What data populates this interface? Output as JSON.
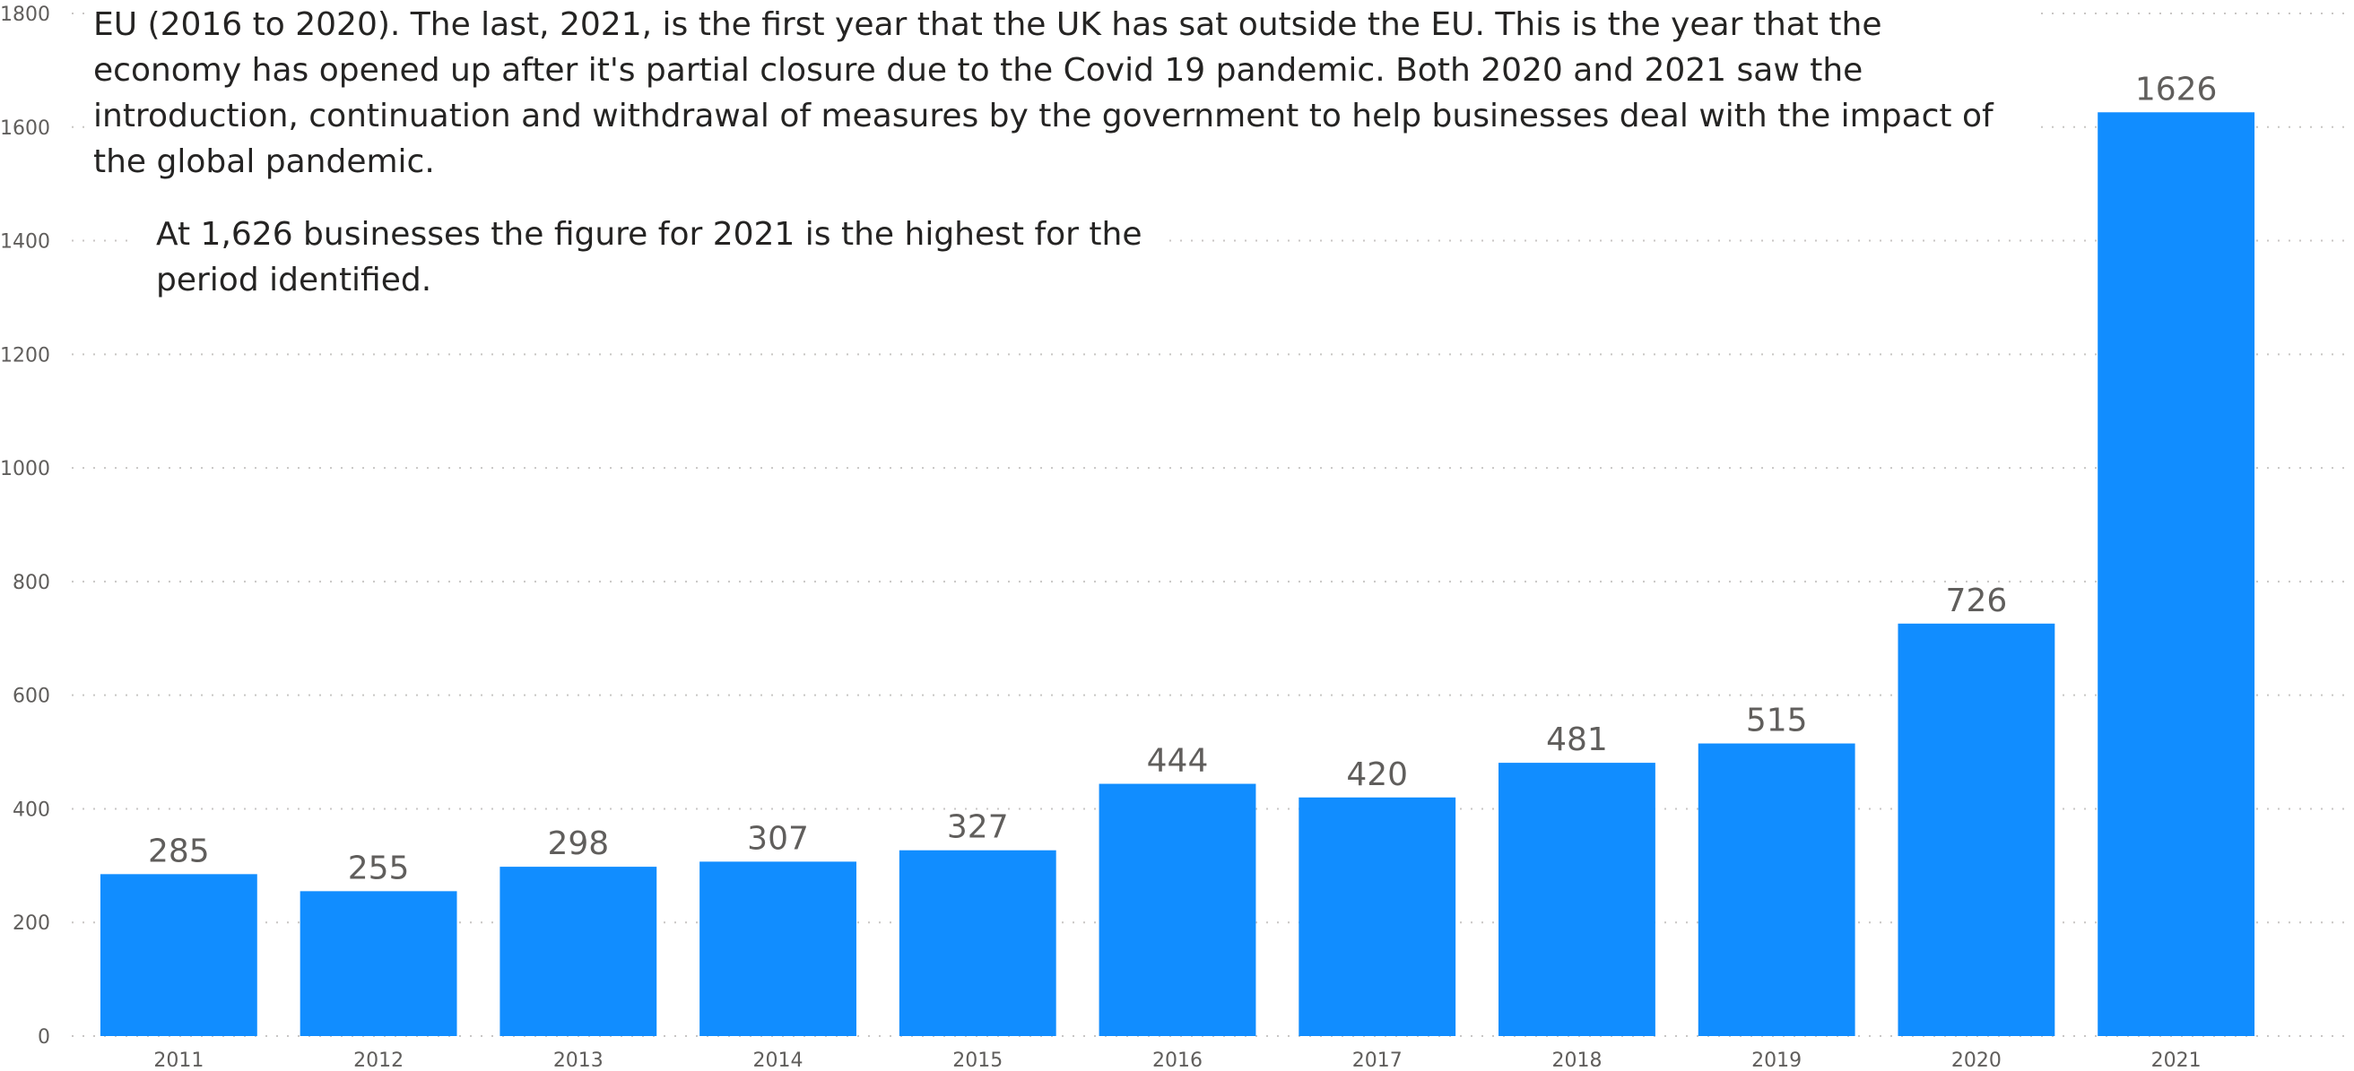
{
  "text": {
    "intro": "EU (2016 to 2020). The last, 2021, is the first year that the UK has sat outside the EU.  This is the year that the economy has opened up after it's partial closure due to the Covid 19 pandemic.   Both 2020 and 2021 saw the introduction, continuation and withdrawal of measures by the government to help businesses deal with the impact of the global pandemic.",
    "note": "At 1,626 businesses the figure for 2021 is the highest for the period identified."
  },
  "colors": {
    "bar": "#118DFF",
    "grid": "#C8C6C4",
    "axis_text": "#605E5C",
    "label_text": "#605E5C"
  },
  "chart_data": {
    "type": "bar",
    "title": "",
    "xlabel": "",
    "ylabel": "",
    "categories": [
      "2011",
      "2012",
      "2013",
      "2014",
      "2015",
      "2016",
      "2017",
      "2018",
      "2019",
      "2020",
      "2021"
    ],
    "values": [
      285,
      255,
      298,
      307,
      327,
      444,
      420,
      481,
      515,
      726,
      1626
    ],
    "ylim": [
      0,
      1800
    ],
    "yticks": [
      0,
      200,
      400,
      600,
      800,
      1000,
      1200,
      1400,
      1600,
      1800
    ],
    "grid": true,
    "data_labels": true
  }
}
